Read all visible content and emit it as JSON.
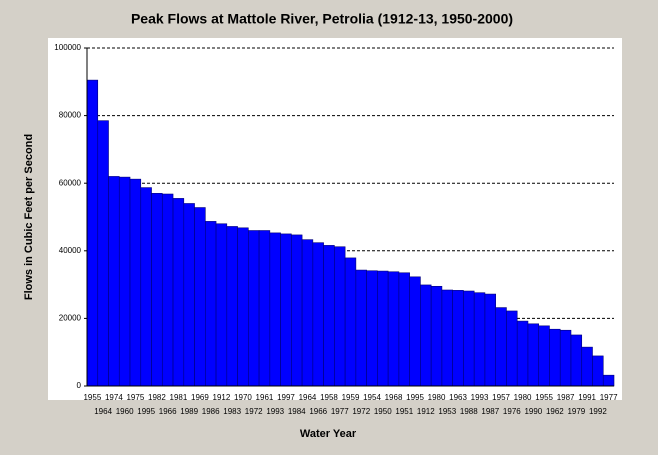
{
  "chart_data": {
    "type": "bar",
    "title": "Peak Flows at Mattole River, Petrolia (1912-13, 1950-2000)",
    "x_label": "Water Year",
    "y_label": "Flows in Cubic Feet per Second",
    "categories": [
      "1955",
      "1964",
      "1974",
      "1960",
      "1975",
      "1995",
      "1982",
      "1966",
      "1981",
      "1989",
      "1969",
      "1986",
      "1912",
      "1983",
      "1970",
      "1972",
      "1961",
      "1993",
      "1997",
      "1984",
      "1964",
      "1966",
      "1958",
      "1977",
      "1959",
      "1972",
      "1954",
      "1950",
      "1968",
      "1951",
      "1995",
      "1912",
      "1980",
      "1953",
      "1963",
      "1988",
      "1993",
      "1987",
      "1957",
      "1976",
      "1980",
      "1990",
      "1955",
      "1962",
      "1987",
      "1979",
      "1991",
      "1992",
      "1977"
    ],
    "values": [
      90500,
      78500,
      62000,
      61800,
      61200,
      58700,
      57000,
      56800,
      55500,
      54000,
      52800,
      48700,
      48000,
      47200,
      46800,
      46000,
      46000,
      45300,
      45000,
      44700,
      43300,
      42400,
      41600,
      41200,
      37900,
      34300,
      34100,
      34000,
      33800,
      33500,
      32300,
      29900,
      29500,
      28400,
      28300,
      28100,
      27600,
      27200,
      23200,
      22200,
      19200,
      18400,
      17800,
      16800,
      16500,
      15100,
      11500,
      8900,
      3200
    ],
    "color": "#0000ff",
    "ylim": [
      0,
      100000
    ],
    "yticks": [
      0,
      20000,
      40000,
      60000,
      80000,
      100000
    ],
    "grid": true
  }
}
